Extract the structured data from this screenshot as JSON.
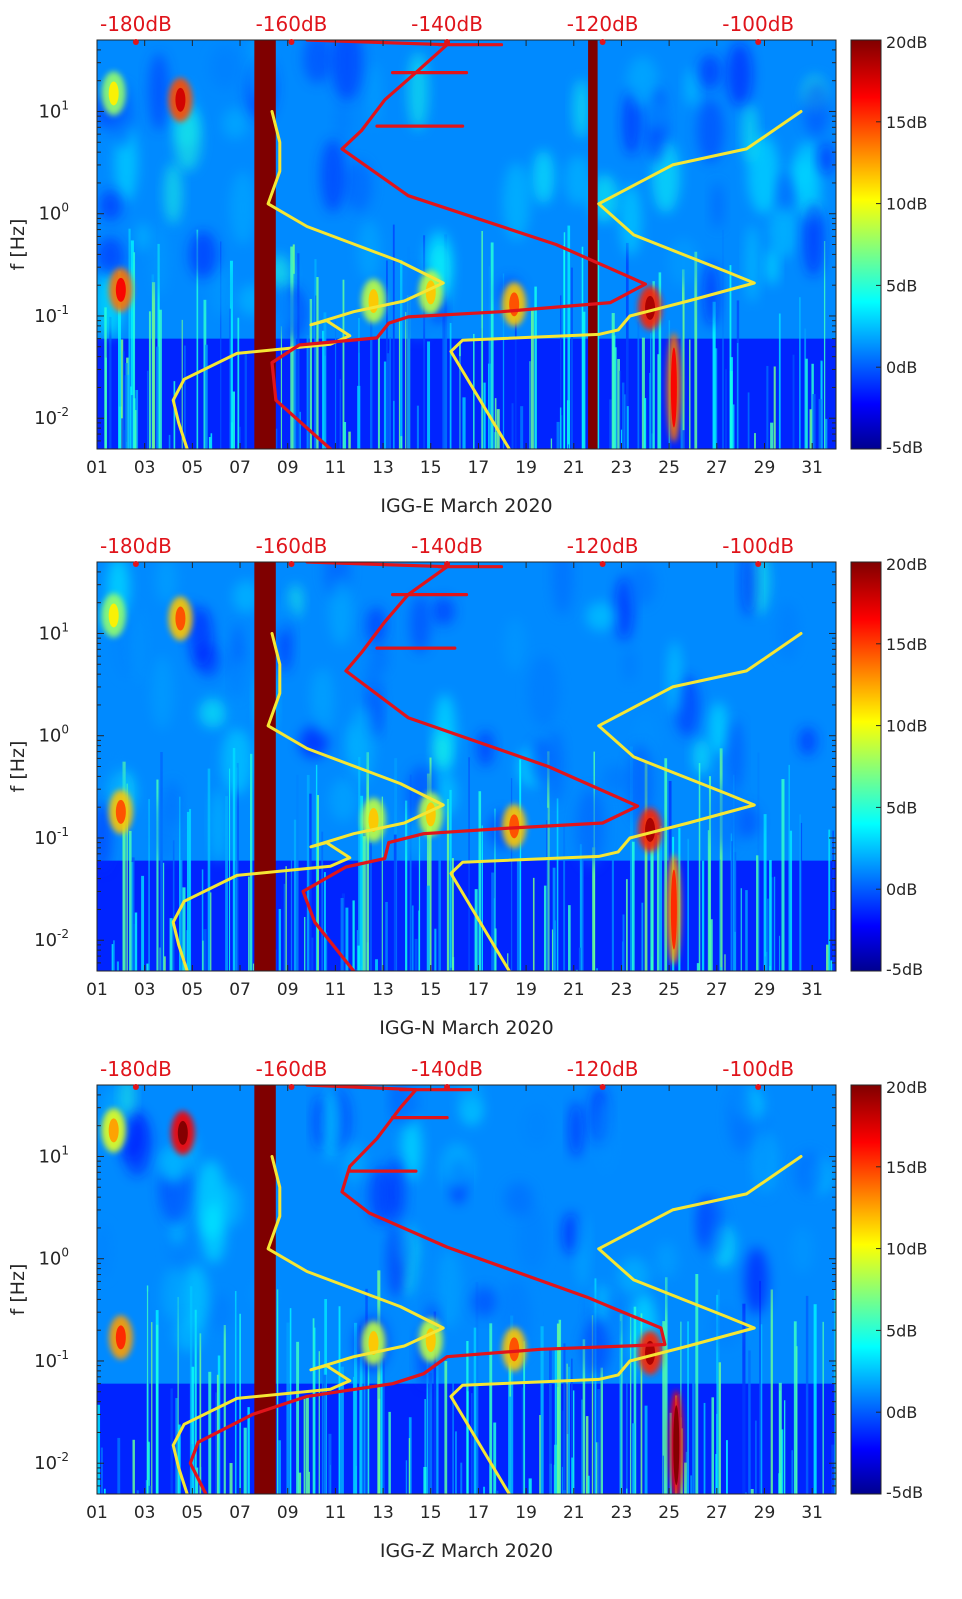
{
  "chart_data": [
    {
      "type": "heatmap",
      "title": "",
      "xlabel": "IGG-E March 2020",
      "ylabel": "f [Hz]",
      "x_ticks": [
        "01",
        "03",
        "05",
        "07",
        "09",
        "11",
        "13",
        "15",
        "17",
        "19",
        "21",
        "23",
        "25",
        "27",
        "29",
        "31"
      ],
      "x_range": [
        1,
        32
      ],
      "y_ticks": [
        "10^-2",
        "10^-1",
        "10^0",
        "10^1"
      ],
      "y_scale": "log",
      "y_range": [
        0.005,
        50
      ],
      "top_axis_labels": [
        "-180dB",
        "-160dB",
        "-140dB",
        "-120dB",
        "-100dB"
      ],
      "top_axis_range_db": [
        -185,
        -90
      ],
      "colorbar": {
        "ticks": [
          "20dB",
          "15dB",
          "10dB",
          "5dB",
          "0dB",
          "-5dB"
        ],
        "range_db": [
          -5,
          20
        ],
        "colormap": "jet"
      },
      "data_gaps_days": [
        [
          7.6,
          8.5
        ],
        [
          21.6,
          22.0
        ]
      ],
      "hotspots": [
        {
          "day": 4.5,
          "f_hz": 13,
          "level_db": 15
        },
        {
          "day": 1.7,
          "f_hz": 15,
          "level_db": 8
        },
        {
          "day": 2.0,
          "f_hz": 0.18,
          "level_db": 14
        },
        {
          "day": 12.6,
          "f_hz": 0.14,
          "level_db": 9
        },
        {
          "day": 15.0,
          "f_hz": 0.17,
          "level_db": 9
        },
        {
          "day": 18.5,
          "f_hz": 0.13,
          "level_db": 12
        },
        {
          "day": 24.2,
          "f_hz": 0.12,
          "level_db": 16
        },
        {
          "day": 25.2,
          "f_hz": 0.02,
          "level_db": 14
        }
      ],
      "series": [
        {
          "name": "",
          "color": "#f5e634",
          "note": "noise model; x in dB on top axis, y in Hz",
          "points": [
            [
              -173.4,
              0.005
            ],
            [
              -174.5,
              0.009
            ],
            [
              -175.2,
              0.015
            ],
            [
              -173.8,
              0.024
            ],
            [
              -167,
              0.043
            ],
            [
              -155,
              0.053
            ],
            [
              -152.5,
              0.064
            ],
            [
              -155.5,
              0.09
            ],
            [
              -157.5,
              0.082
            ],
            [
              -152,
              0.11
            ],
            [
              -145.5,
              0.14
            ],
            [
              -140.5,
              0.21
            ],
            [
              -146,
              0.34
            ],
            [
              -158,
              0.75
            ],
            [
              -163,
              1.25
            ],
            [
              -161.5,
              2.6
            ],
            [
              -161.5,
              5.0
            ],
            [
              -162.5,
              10
            ]
          ]
        },
        {
          "name": "",
          "color": "#f5e634",
          "note": "noise model (right curve)",
          "points": [
            [
              -132,
              0.005
            ],
            [
              -139.5,
              0.045
            ],
            [
              -138,
              0.058
            ],
            [
              -120.5,
              0.066
            ],
            [
              -118,
              0.073
            ],
            [
              -116.5,
              0.1
            ],
            [
              -109,
              0.14
            ],
            [
              -100.5,
              0.21
            ],
            [
              -104,
              0.27
            ],
            [
              -116,
              0.62
            ],
            [
              -120.5,
              1.25
            ],
            [
              -111,
              3.0
            ],
            [
              -101.5,
              4.3
            ],
            [
              -94.5,
              10
            ]
          ]
        },
        {
          "name": "",
          "color": "#e0141b",
          "note": "measured curve",
          "points": [
            [
              -155,
              0.005
            ],
            [
              -162,
              0.015
            ],
            [
              -162.5,
              0.035
            ],
            [
              -159,
              0.052
            ],
            [
              -149,
              0.061
            ],
            [
              -147.5,
              0.085
            ],
            [
              -145,
              0.098
            ],
            [
              -133,
              0.11
            ],
            [
              -119,
              0.135
            ],
            [
              -114.5,
              0.205
            ],
            [
              -126,
              0.5
            ],
            [
              -145,
              1.5
            ],
            [
              -153.5,
              4.3
            ],
            [
              -151,
              6.5
            ],
            [
              -148,
              13
            ],
            [
              -144,
              24
            ],
            [
              -140,
              45
            ],
            [
              -158,
              50
            ]
          ]
        },
        {
          "name": "",
          "color": "#e0141b",
          "note": "spur branches",
          "branches": [
            [
              [
                -147,
                24
              ],
              [
                -137.5,
                24
              ]
            ],
            [
              [
                -149,
                7.2
              ],
              [
                -138,
                7.2
              ]
            ],
            [
              [
                -141,
                45
              ],
              [
                -133,
                45
              ]
            ]
          ]
        }
      ]
    },
    {
      "type": "heatmap",
      "title": "",
      "xlabel": "IGG-N March 2020",
      "ylabel": "f [Hz]",
      "x_ticks": [
        "01",
        "03",
        "05",
        "07",
        "09",
        "11",
        "13",
        "15",
        "17",
        "19",
        "21",
        "23",
        "25",
        "27",
        "29",
        "31"
      ],
      "x_range": [
        1,
        32
      ],
      "y_ticks": [
        "10^-2",
        "10^-1",
        "10^0",
        "10^1"
      ],
      "y_scale": "log",
      "y_range": [
        0.005,
        50
      ],
      "top_axis_labels": [
        "-180dB",
        "-160dB",
        "-140dB",
        "-120dB",
        "-100dB"
      ],
      "top_axis_range_db": [
        -185,
        -90
      ],
      "colorbar": {
        "ticks": [
          "20dB",
          "15dB",
          "10dB",
          "5dB",
          "0dB",
          "-5dB"
        ],
        "range_db": [
          -5,
          20
        ],
        "colormap": "jet"
      },
      "data_gaps_days": [
        [
          7.6,
          8.5
        ]
      ],
      "hotspots": [
        {
          "day": 4.5,
          "f_hz": 14,
          "level_db": 12
        },
        {
          "day": 1.7,
          "f_hz": 15,
          "level_db": 8
        },
        {
          "day": 2.0,
          "f_hz": 0.18,
          "level_db": 12
        },
        {
          "day": 12.6,
          "f_hz": 0.15,
          "level_db": 9
        },
        {
          "day": 15.0,
          "f_hz": 0.17,
          "level_db": 9
        },
        {
          "day": 18.5,
          "f_hz": 0.13,
          "level_db": 12
        },
        {
          "day": 24.2,
          "f_hz": 0.12,
          "level_db": 16
        },
        {
          "day": 25.2,
          "f_hz": 0.02,
          "level_db": 13
        }
      ],
      "series": [
        {
          "name": "",
          "color": "#f5e634",
          "points": [
            [
              -173.4,
              0.005
            ],
            [
              -174.5,
              0.009
            ],
            [
              -175.2,
              0.015
            ],
            [
              -173.8,
              0.024
            ],
            [
              -167,
              0.043
            ],
            [
              -155,
              0.053
            ],
            [
              -152.5,
              0.064
            ],
            [
              -155.5,
              0.09
            ],
            [
              -157.5,
              0.082
            ],
            [
              -152,
              0.11
            ],
            [
              -145.5,
              0.14
            ],
            [
              -140.5,
              0.21
            ],
            [
              -146,
              0.34
            ],
            [
              -158,
              0.75
            ],
            [
              -163,
              1.25
            ],
            [
              -161.5,
              2.6
            ],
            [
              -161.5,
              5.0
            ],
            [
              -162.5,
              10
            ]
          ]
        },
        {
          "name": "",
          "color": "#f5e634",
          "points": [
            [
              -132,
              0.005
            ],
            [
              -139.5,
              0.045
            ],
            [
              -138,
              0.058
            ],
            [
              -120.5,
              0.066
            ],
            [
              -118,
              0.073
            ],
            [
              -116.5,
              0.1
            ],
            [
              -109,
              0.14
            ],
            [
              -100.5,
              0.21
            ],
            [
              -104,
              0.27
            ],
            [
              -116,
              0.62
            ],
            [
              -120.5,
              1.25
            ],
            [
              -111,
              3.0
            ],
            [
              -101.5,
              4.3
            ],
            [
              -94.5,
              10
            ]
          ]
        },
        {
          "name": "",
          "color": "#e0141b",
          "points": [
            [
              -152,
              0.005
            ],
            [
              -157,
              0.015
            ],
            [
              -158.5,
              0.03
            ],
            [
              -153,
              0.052
            ],
            [
              -148,
              0.063
            ],
            [
              -147.5,
              0.09
            ],
            [
              -143,
              0.11
            ],
            [
              -132,
              0.125
            ],
            [
              -120,
              0.14
            ],
            [
              -115.5,
              0.205
            ],
            [
              -127,
              0.5
            ],
            [
              -145,
              1.5
            ],
            [
              -153,
              4.3
            ],
            [
              -151,
              6.5
            ],
            [
              -148,
              13
            ],
            [
              -145,
              24
            ],
            [
              -140,
              45
            ],
            [
              -158,
              50
            ]
          ]
        },
        {
          "name": "",
          "color": "#e0141b",
          "branches": [
            [
              [
                -147,
                24
              ],
              [
                -137.5,
                24
              ]
            ],
            [
              [
                -149,
                7.2
              ],
              [
                -139,
                7.2
              ]
            ],
            [
              [
                -141,
                45
              ],
              [
                -133,
                45
              ]
            ]
          ]
        }
      ]
    },
    {
      "type": "heatmap",
      "title": "",
      "xlabel": "IGG-Z March 2020",
      "ylabel": "f [Hz]",
      "x_ticks": [
        "01",
        "03",
        "05",
        "07",
        "09",
        "11",
        "13",
        "15",
        "17",
        "19",
        "21",
        "23",
        "25",
        "27",
        "29",
        "31"
      ],
      "x_range": [
        1,
        32
      ],
      "y_ticks": [
        "10^-2",
        "10^-1",
        "10^0",
        "10^1"
      ],
      "y_scale": "log",
      "y_range": [
        0.005,
        50
      ],
      "top_axis_labels": [
        "-180dB",
        "-160dB",
        "-140dB",
        "-120dB",
        "-100dB"
      ],
      "top_axis_range_db": [
        -185,
        -90
      ],
      "colorbar": {
        "ticks": [
          "20dB",
          "15dB",
          "10dB",
          "5dB",
          "0dB",
          "-5dB"
        ],
        "range_db": [
          -5,
          20
        ],
        "colormap": "jet"
      },
      "data_gaps_days": [
        [
          7.6,
          8.5
        ]
      ],
      "hotspots": [
        {
          "day": 4.6,
          "f_hz": 17,
          "level_db": 17
        },
        {
          "day": 1.7,
          "f_hz": 18,
          "level_db": 10
        },
        {
          "day": 2.0,
          "f_hz": 0.17,
          "level_db": 13
        },
        {
          "day": 12.6,
          "f_hz": 0.15,
          "level_db": 9
        },
        {
          "day": 15.0,
          "f_hz": 0.16,
          "level_db": 9
        },
        {
          "day": 18.5,
          "f_hz": 0.13,
          "level_db": 12
        },
        {
          "day": 24.2,
          "f_hz": 0.12,
          "level_db": 16
        },
        {
          "day": 25.3,
          "f_hz": 0.015,
          "level_db": 17
        }
      ],
      "series": [
        {
          "name": "",
          "color": "#f5e634",
          "points": [
            [
              -173.4,
              0.005
            ],
            [
              -174.5,
              0.009
            ],
            [
              -175.2,
              0.015
            ],
            [
              -173.8,
              0.024
            ],
            [
              -167,
              0.043
            ],
            [
              -155,
              0.053
            ],
            [
              -152.5,
              0.064
            ],
            [
              -155.5,
              0.09
            ],
            [
              -157.5,
              0.082
            ],
            [
              -152,
              0.11
            ],
            [
              -145.5,
              0.14
            ],
            [
              -140.5,
              0.21
            ],
            [
              -146,
              0.34
            ],
            [
              -158,
              0.75
            ],
            [
              -163,
              1.25
            ],
            [
              -161.5,
              2.6
            ],
            [
              -161.5,
              5.0
            ],
            [
              -162.5,
              10
            ]
          ]
        },
        {
          "name": "",
          "color": "#f5e634",
          "points": [
            [
              -132,
              0.005
            ],
            [
              -139.5,
              0.045
            ],
            [
              -138,
              0.058
            ],
            [
              -120.5,
              0.066
            ],
            [
              -118,
              0.073
            ],
            [
              -116.5,
              0.1
            ],
            [
              -109,
              0.14
            ],
            [
              -100.5,
              0.21
            ],
            [
              -104,
              0.27
            ],
            [
              -116,
              0.62
            ],
            [
              -120.5,
              1.25
            ],
            [
              -111,
              3.0
            ],
            [
              -101.5,
              4.3
            ],
            [
              -94.5,
              10
            ]
          ]
        },
        {
          "name": "",
          "color": "#e0141b",
          "points": [
            [
              -171,
              0.005
            ],
            [
              -173,
              0.01
            ],
            [
              -172,
              0.016
            ],
            [
              -165,
              0.03
            ],
            [
              -158,
              0.045
            ],
            [
              -147,
              0.06
            ],
            [
              -143,
              0.075
            ],
            [
              -140,
              0.11
            ],
            [
              -128,
              0.13
            ],
            [
              -112,
              0.145
            ],
            [
              -112.5,
              0.21
            ],
            [
              -122,
              0.42
            ],
            [
              -140,
              1.3
            ],
            [
              -150,
              2.8
            ],
            [
              -153.5,
              4.5
            ],
            [
              -152.5,
              8
            ],
            [
              -149,
              15
            ],
            [
              -146,
              30
            ],
            [
              -144,
              45
            ],
            [
              -158,
              50
            ]
          ]
        },
        {
          "name": "",
          "color": "#e0141b",
          "branches": [
            [
              [
                -147,
                24
              ],
              [
                -140,
                24
              ]
            ],
            [
              [
                -152.5,
                7.2
              ],
              [
                -144,
                7.2
              ]
            ],
            [
              [
                -146,
                45
              ],
              [
                -137,
                45
              ]
            ]
          ]
        }
      ]
    }
  ]
}
